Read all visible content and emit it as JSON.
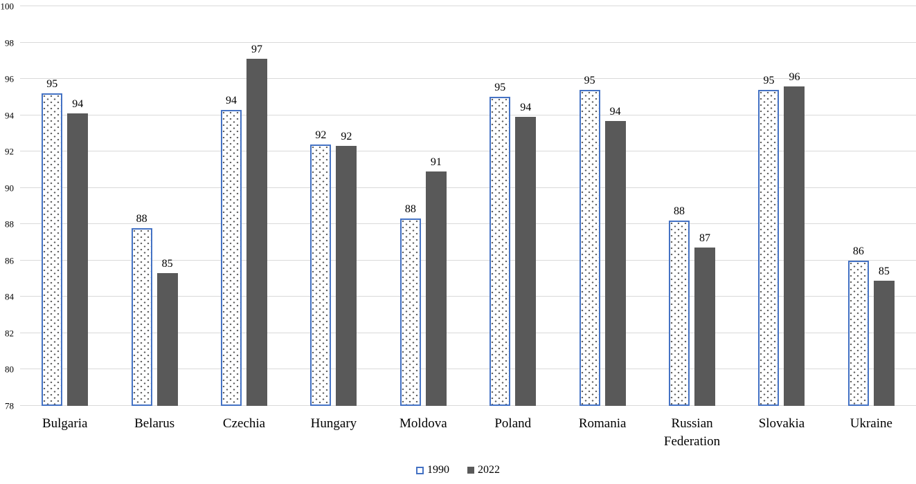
{
  "chart_data": {
    "type": "bar",
    "title": "",
    "xlabel": "",
    "ylabel": "",
    "categories": [
      "Bulgaria",
      "Belarus",
      "Czechia",
      "Hungary",
      "Moldova",
      "Poland",
      "Romania",
      "Russian Federation",
      "Slovakia",
      "Ukraine"
    ],
    "series": [
      {
        "name": "1990",
        "values": [
          95.2,
          87.8,
          94.3,
          92.4,
          88.3,
          95.0,
          95.4,
          88.2,
          95.4,
          86.0
        ],
        "labels": [
          "95",
          "88",
          "94",
          "92",
          "88",
          "95",
          "95",
          "88",
          "95",
          "86"
        ],
        "style": "dotted-pattern-outline",
        "outline_color": "#4472C4",
        "dot_color": "#595959"
      },
      {
        "name": "2022",
        "values": [
          94.1,
          85.3,
          97.1,
          92.3,
          90.9,
          93.9,
          93.7,
          86.7,
          95.6,
          84.9
        ],
        "labels": [
          "94",
          "85",
          "97",
          "92",
          "91",
          "94",
          "94",
          "87",
          "96",
          "85"
        ],
        "style": "solid",
        "fill_color": "#595959"
      }
    ],
    "ylim": [
      78,
      100
    ],
    "yticks": [
      "78",
      "80",
      "82",
      "84",
      "86",
      "88",
      "90",
      "92",
      "94",
      "96",
      "98",
      "100"
    ],
    "grid": true,
    "legend_position": "bottom-center",
    "colors": {
      "gridline": "#D9D9D9",
      "axis_text": "#000000",
      "data_label_text": "#000000",
      "background": "#FFFFFF",
      "series_1990_outline": "#4472C4",
      "series_2022_fill": "#595959"
    }
  }
}
